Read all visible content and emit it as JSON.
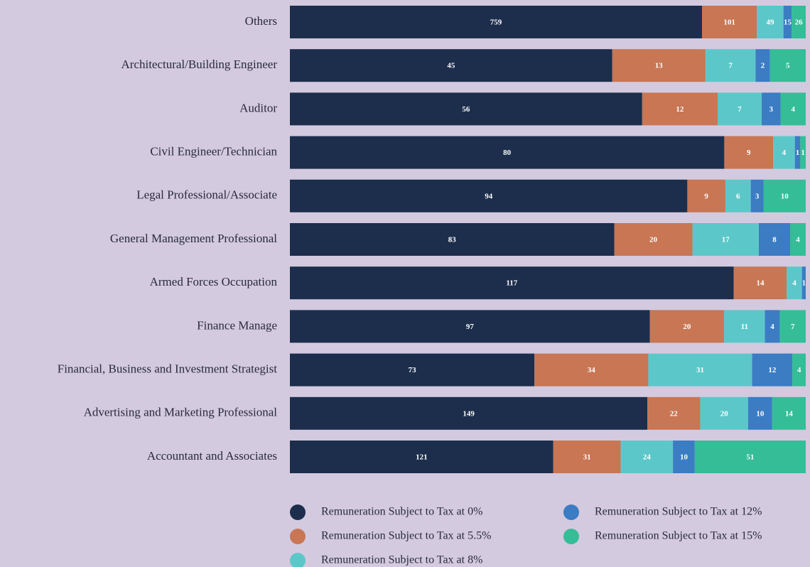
{
  "chart_data": {
    "type": "bar",
    "orientation": "horizontal",
    "stack": "percent",
    "categories": [
      "Others",
      "Architectural/Building Engineer",
      "Auditor",
      "Civil Engineer/Technician",
      "Legal Professional/Associate",
      "General Management Professional",
      "Armed Forces Occupation",
      "Finance Manage",
      "Financial, Business and Investment Strategist",
      "Advertising and Marketing Professional",
      "Accountant and Associates"
    ],
    "series": [
      {
        "name": "Remuneration Subject to Tax at 0%",
        "color": "#1c2e4b",
        "values": [
          759,
          45,
          56,
          80,
          94,
          83,
          117,
          97,
          73,
          149,
          121
        ]
      },
      {
        "name": "Remuneration Subject to Tax at 5.5%",
        "color": "#c87654",
        "values": [
          101,
          13,
          12,
          9,
          9,
          20,
          14,
          20,
          34,
          22,
          31
        ]
      },
      {
        "name": "Remuneration Subject to Tax at 8%",
        "color": "#5cc7c9",
        "values": [
          49,
          7,
          7,
          4,
          6,
          17,
          4,
          11,
          31,
          20,
          24
        ]
      },
      {
        "name": "Remuneration Subject to Tax at 12%",
        "color": "#3b7cc3",
        "values": [
          15,
          2,
          3,
          1,
          3,
          8,
          1,
          4,
          12,
          10,
          10
        ]
      },
      {
        "name": "Remuneration Subject to Tax at 15%",
        "color": "#35bd97",
        "values": [
          26,
          5,
          4,
          1,
          10,
          4,
          null,
          7,
          4,
          14,
          51
        ]
      }
    ]
  }
}
